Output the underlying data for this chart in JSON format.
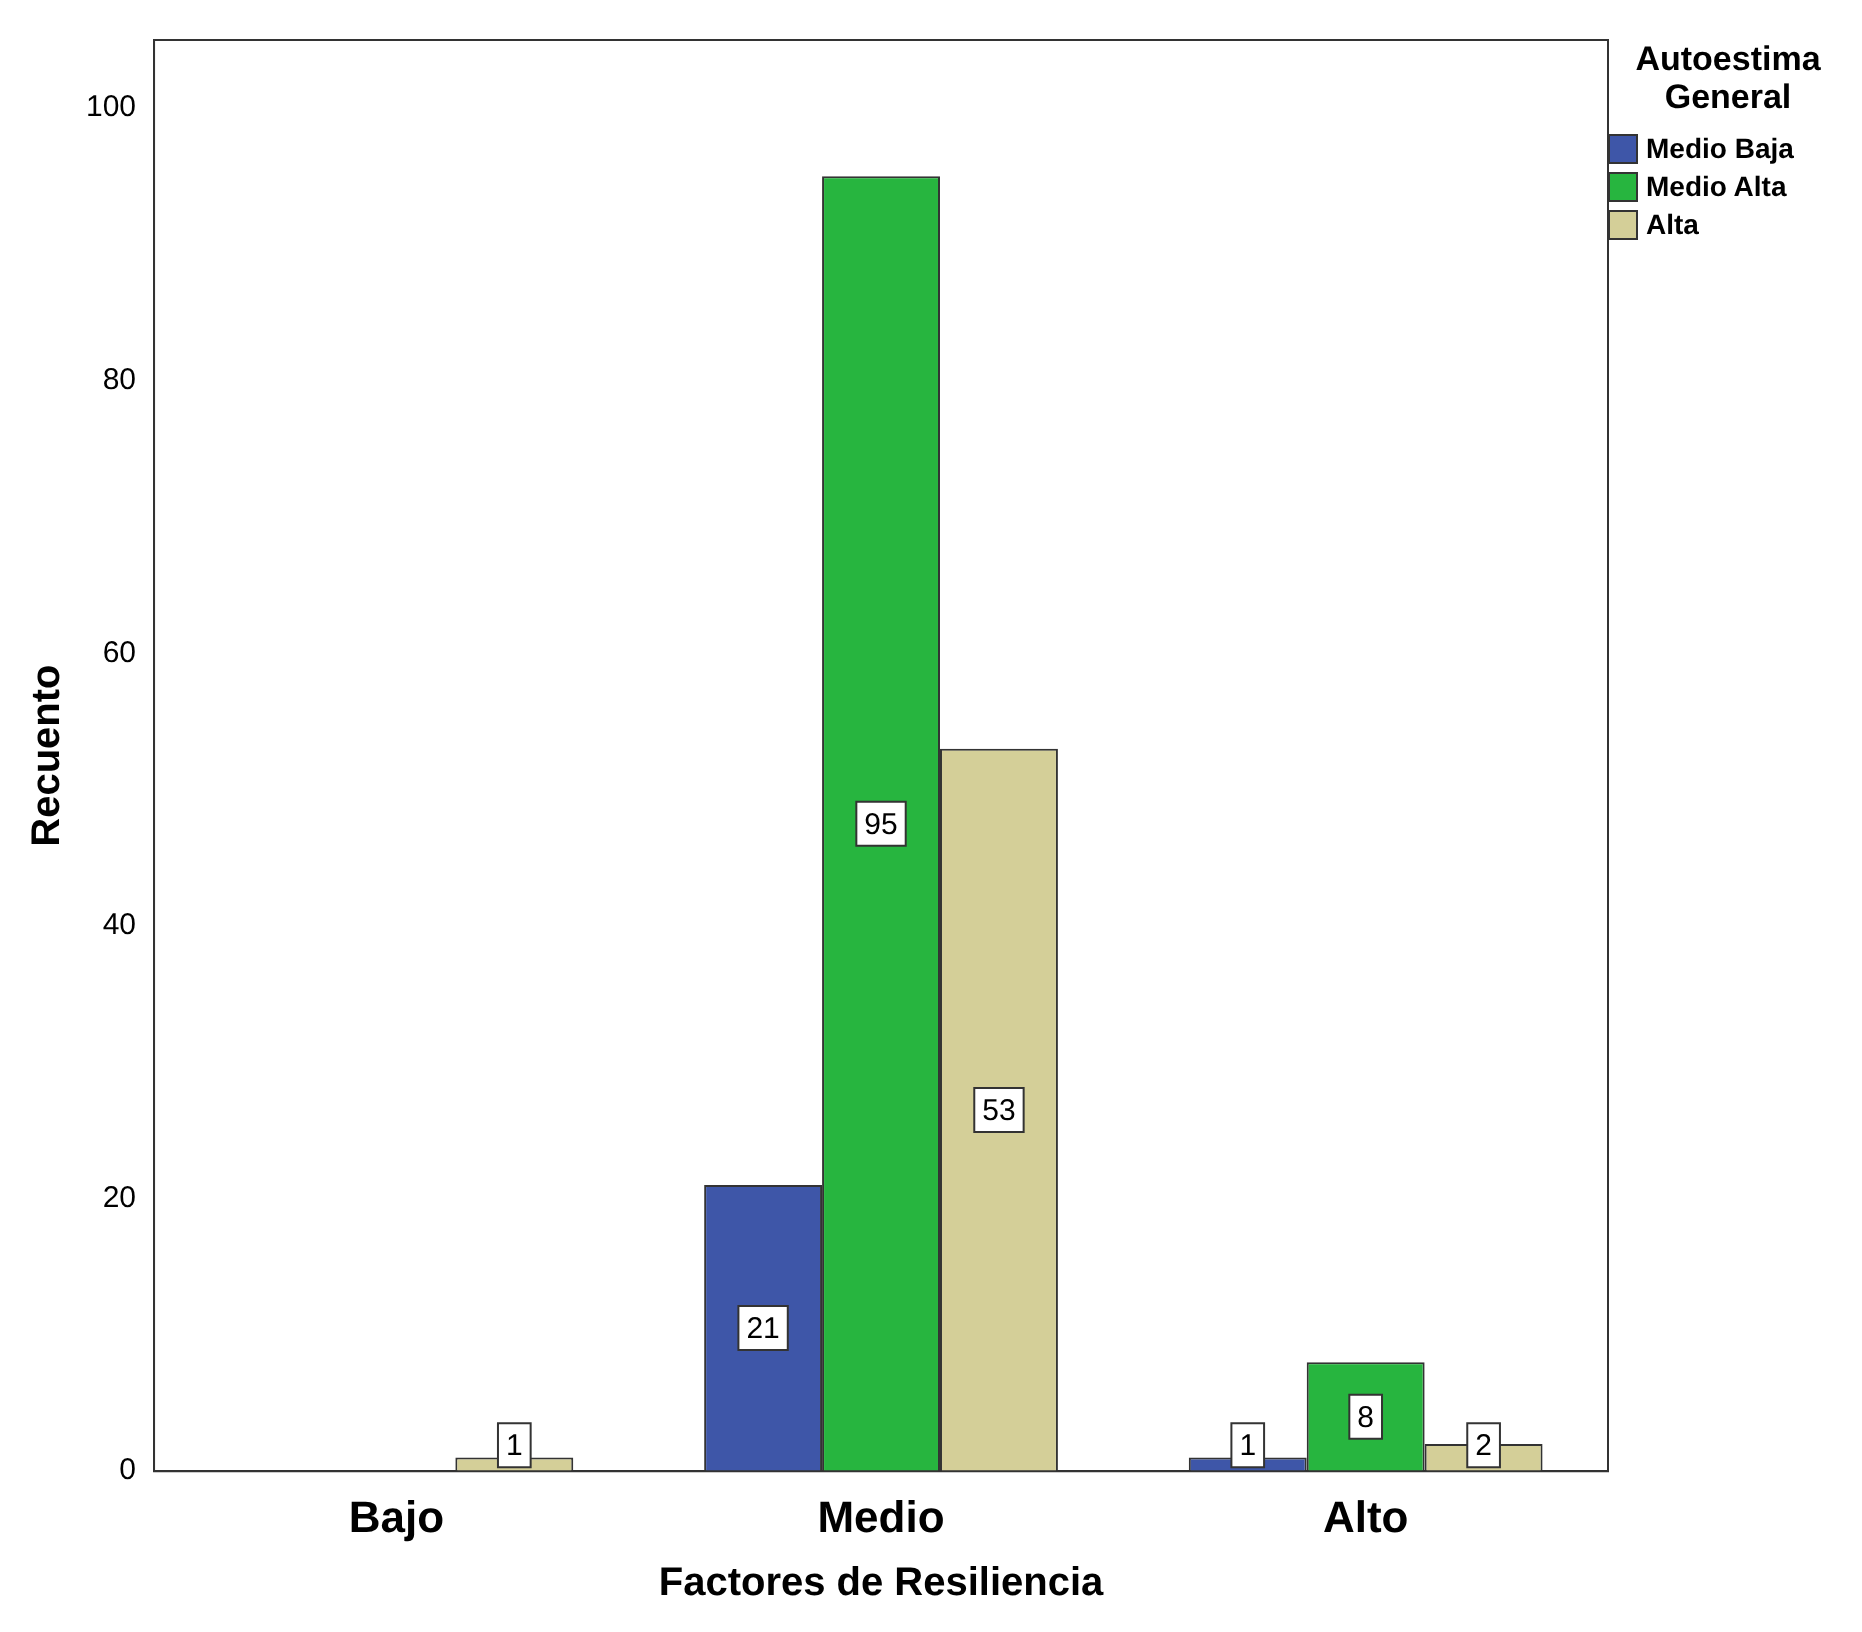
{
  "chart_data": {
    "type": "bar",
    "xlabel": "Factores de Resiliencia",
    "ylabel": "Recuento",
    "legend_title": "Autoestima General",
    "categories": [
      "Bajo",
      "Medio",
      "Alto"
    ],
    "series": [
      {
        "name": "Medio Baja",
        "color": "#3e56a8",
        "values": [
          0,
          21,
          1
        ],
        "value_labels": [
          null,
          "21",
          "1"
        ]
      },
      {
        "name": "Medio Alta",
        "color": "#27b53f",
        "values": [
          0,
          95,
          8
        ],
        "value_labels": [
          null,
          "95",
          "8"
        ]
      },
      {
        "name": "Alta",
        "color": "#d4cf98",
        "values": [
          1,
          53,
          2
        ],
        "value_labels": [
          "1",
          "53",
          "2"
        ]
      }
    ],
    "ylim": [
      0,
      105
    ],
    "yticks": [
      0,
      20,
      40,
      60,
      80,
      100
    ],
    "grid": false,
    "legend": "right"
  }
}
